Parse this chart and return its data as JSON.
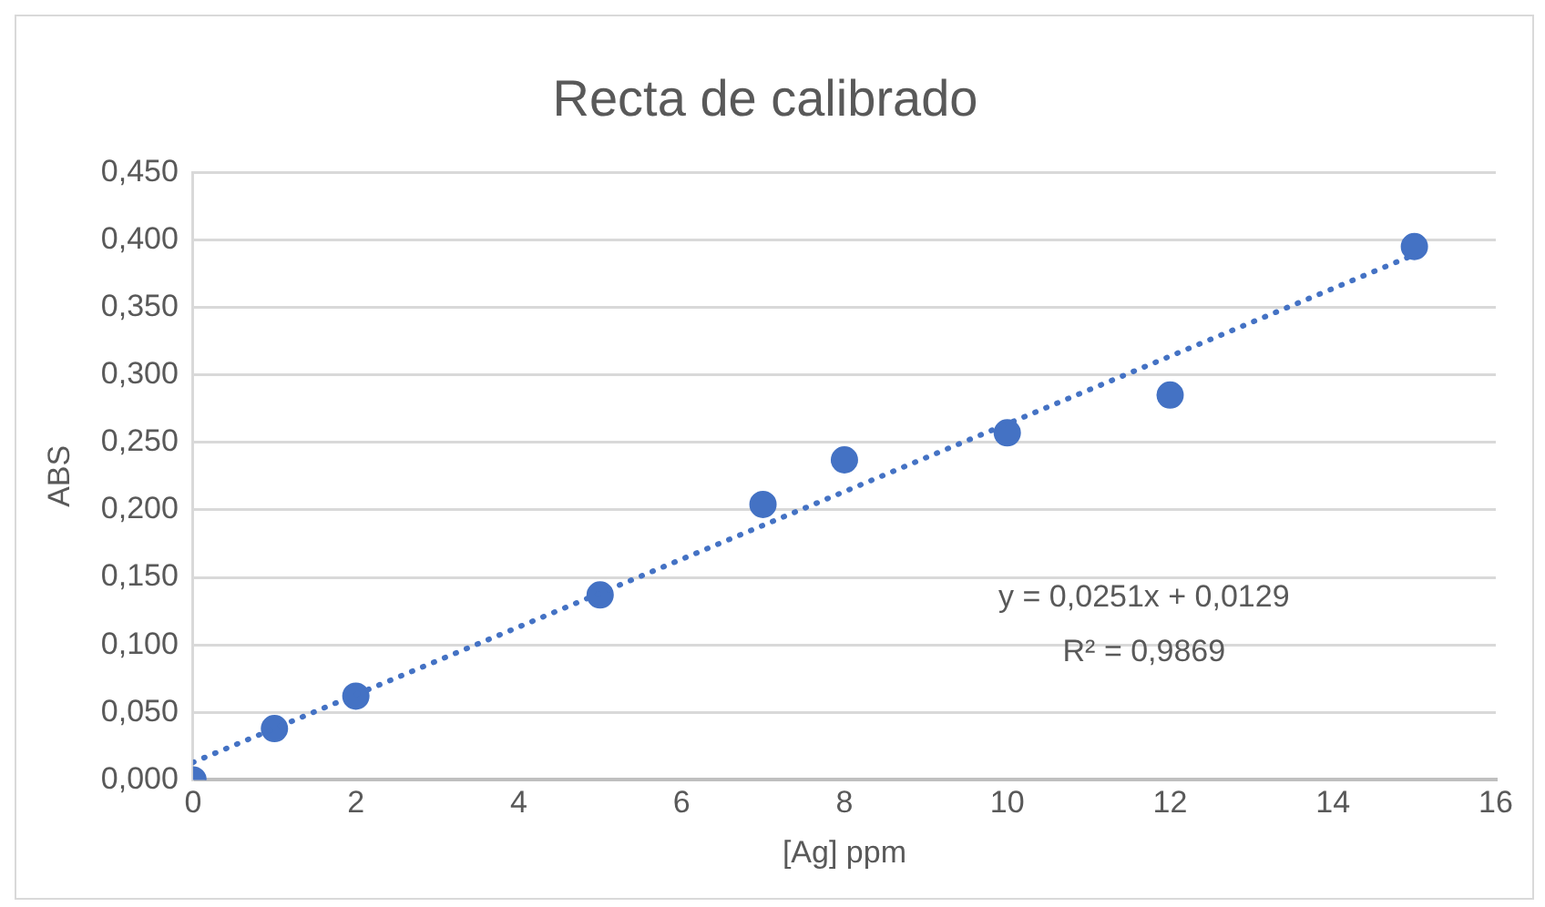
{
  "chart_data": {
    "type": "scatter",
    "title": "Recta de calibrado",
    "xlabel": "[Ag] ppm",
    "ylabel": "ABS",
    "x": [
      0,
      1,
      2,
      5,
      7,
      8,
      10,
      12,
      15
    ],
    "series": [
      {
        "color": "#4472c4",
        "marker": "circle",
        "values": [
          0.0,
          0.038,
          0.062,
          0.137,
          0.204,
          0.237,
          0.257,
          0.285,
          0.395
        ]
      },
      {
        "type": "line",
        "color": "#4472c4",
        "line_style": "dotted",
        "marker": "none",
        "x": [
          0,
          15
        ],
        "values": [
          0.013,
          0.389
        ]
      }
    ],
    "xlim": [
      0,
      16
    ],
    "xticks": [
      0,
      2,
      4,
      6,
      8,
      10,
      12,
      14,
      16
    ],
    "ylim": [
      0,
      0.45
    ],
    "yticks": [
      {
        "value": 0,
        "label": "0,000"
      },
      {
        "value": 0.05,
        "label": "0,050"
      },
      {
        "value": 0.1,
        "label": "0,100"
      },
      {
        "value": 0.15,
        "label": "0,150"
      },
      {
        "value": 0.2,
        "label": "0,200"
      },
      {
        "value": 0.25,
        "label": "0,250"
      },
      {
        "value": 0.3,
        "label": "0,300"
      },
      {
        "value": 0.35,
        "label": "0,350"
      },
      {
        "value": 0.4,
        "label": "0,400"
      },
      {
        "value": 0.45,
        "label": "0,450"
      }
    ],
    "grid": "y",
    "legend": false,
    "annotations": [
      "y = 0,0251x + 0,0129",
      "R² = 0,9869"
    ]
  }
}
